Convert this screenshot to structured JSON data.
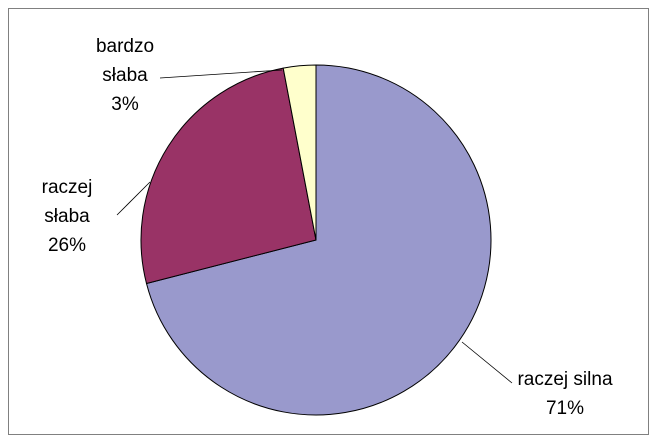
{
  "chart_data": {
    "type": "pie",
    "categories": [
      "raczej silna",
      "raczej słaba",
      "bardzo słaba"
    ],
    "values": [
      71,
      26,
      3
    ],
    "value_labels": [
      "71%",
      "26%",
      "3%"
    ],
    "colors": [
      "#9999cc",
      "#993366",
      "#ffffcc"
    ]
  }
}
